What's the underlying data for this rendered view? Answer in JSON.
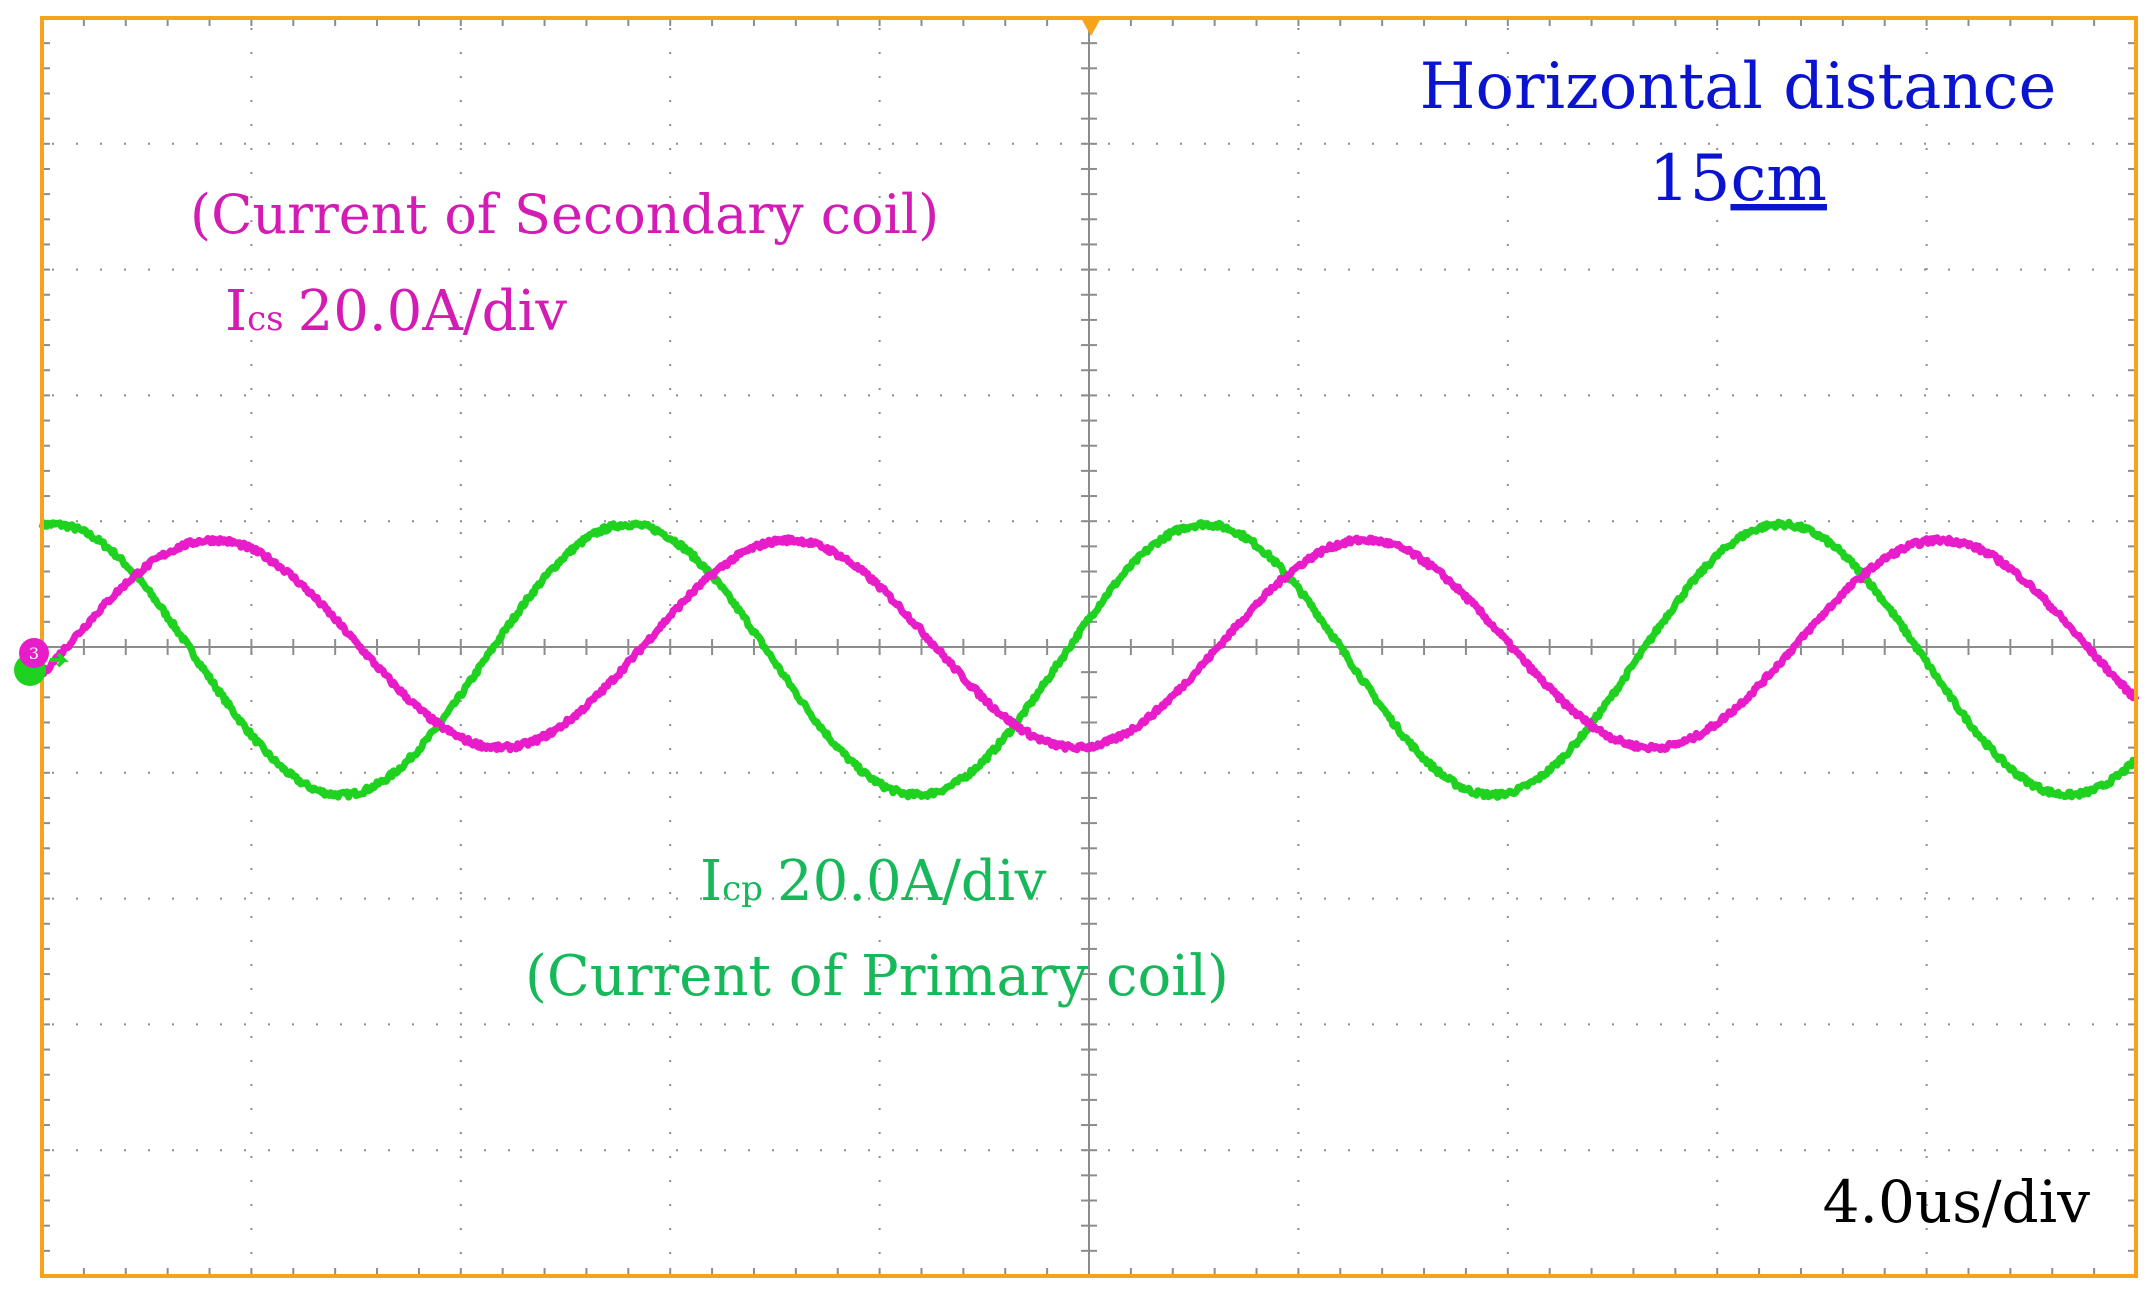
{
  "annotations": {
    "distance_title": "Horizontal distance",
    "distance_value": "15",
    "distance_unit": "cm",
    "secondary_desc": "(Current of Secondary coil)",
    "secondary_symbol": "I",
    "secondary_sub": "cs",
    "secondary_scale": "20.0A/div",
    "primary_symbol": "I",
    "primary_sub": "cp",
    "primary_scale": "20.0A/div",
    "primary_desc": "(Current of Primary coil)",
    "timebase": "4.0us/div",
    "channel_marker": "3"
  },
  "colors": {
    "frame": "#f5a31a",
    "grid": "#8c8c8c",
    "primary": "#1fd21f",
    "secondary": "#e81cc8",
    "distance_text": "#0a14d0",
    "primary_text": "#16b85a",
    "secondary_text": "#d21cb4",
    "timebase_text": "#000000"
  },
  "chart_data": {
    "type": "line",
    "x_unit": "us",
    "x_range": [
      0,
      40
    ],
    "y_unit": "A",
    "y_range": [
      -100,
      100
    ],
    "horizontal_divisions": 10,
    "vertical_divisions": 10,
    "series": [
      {
        "name": "Icp",
        "description": "Current of Primary coil",
        "scale": "20.0A/div",
        "amplitude": 21.5,
        "offset": -2.0,
        "period_us": 11.0,
        "phase_deg": 83
      },
      {
        "name": "Ics",
        "description": "Current of Secondary coil",
        "scale": "20.0A/div",
        "amplitude": 16.5,
        "offset": 0.5,
        "period_us": 11.0,
        "phase_deg": -17
      }
    ]
  }
}
